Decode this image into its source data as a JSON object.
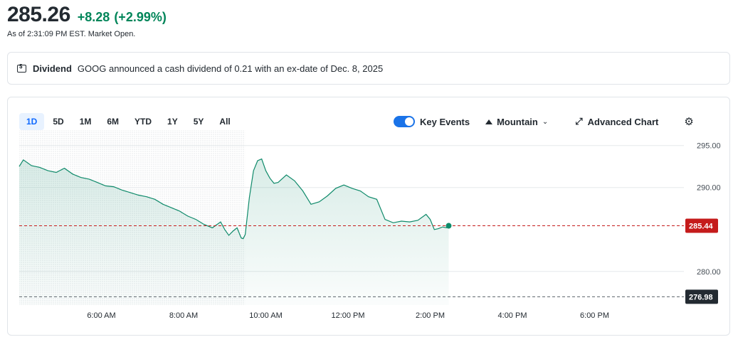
{
  "quote": {
    "price": "285.26",
    "change": "+8.28",
    "change_pct": "(+2.99%)",
    "as_of": "As of 2:31:09 PM EST. Market Open."
  },
  "dividend": {
    "label": "Dividend",
    "text": "GOOG announced a cash dividend of 0.21 with an ex-date of Dec. 8, 2025",
    "icon": "dollar-bill-icon"
  },
  "range_tabs": [
    "1D",
    "5D",
    "1M",
    "6M",
    "YTD",
    "1Y",
    "5Y",
    "All"
  ],
  "active_range": "1D",
  "toolbar": {
    "key_events_label": "Key Events",
    "key_events_on": true,
    "chart_type_label": "Mountain",
    "advanced_label": "Advanced Chart",
    "settings_icon": "gear-icon"
  },
  "colors": {
    "accent": "#0f69ff",
    "up": "#008559",
    "line": "#0f8a6a",
    "last_tag": "#c51b1b",
    "prev_close_tag": "#232a31"
  },
  "chart_data": {
    "type": "area",
    "ylim": [
      276.0,
      296.5
    ],
    "yticks": [
      "295.00",
      "290.00",
      "280.00"
    ],
    "ytick_values": [
      295,
      290,
      280
    ],
    "xticks": [
      "6:00 AM",
      "8:00 AM",
      "10:00 AM",
      "12:00 PM",
      "2:00 PM",
      "4:00 PM",
      "6:00 PM"
    ],
    "xtick_hours": [
      6,
      8,
      10,
      12,
      14,
      16,
      18
    ],
    "x_range_hours": [
      4.0,
      20.0
    ],
    "premarket_end_hour": 9.5,
    "last_price": 285.44,
    "last_price_label": "285.44",
    "prev_close": 276.98,
    "prev_close_label": "276.98",
    "series": [
      {
        "x": [
          4.0,
          4.1,
          4.3,
          4.5,
          4.7,
          4.9,
          5.1,
          5.3,
          5.5,
          5.7,
          5.9,
          6.1,
          6.3,
          6.5,
          6.7,
          6.9,
          7.1,
          7.3,
          7.5,
          7.7,
          7.9,
          8.1,
          8.3,
          8.5,
          8.7,
          8.9,
          9.0,
          9.1,
          9.2,
          9.3,
          9.4,
          9.45,
          9.5,
          9.6,
          9.7,
          9.8,
          9.9,
          10.0,
          10.1,
          10.2,
          10.3,
          10.5,
          10.7,
          10.9,
          11.1,
          11.3,
          11.5,
          11.7,
          11.9,
          12.1,
          12.3,
          12.5,
          12.7,
          12.9,
          13.1,
          13.3,
          13.5,
          13.7,
          13.9,
          14.0,
          14.1,
          14.2,
          14.3,
          14.4,
          14.45
        ],
        "y": [
          292.5,
          293.3,
          292.6,
          292.4,
          292.0,
          291.8,
          292.3,
          291.6,
          291.2,
          291.0,
          290.6,
          290.2,
          290.1,
          289.7,
          289.4,
          289.1,
          288.9,
          288.6,
          288.0,
          287.6,
          287.2,
          286.6,
          286.2,
          285.6,
          285.2,
          285.9,
          285.0,
          284.3,
          284.8,
          285.2,
          284.0,
          283.9,
          284.4,
          288.8,
          292.0,
          293.2,
          293.4,
          292.0,
          291.1,
          290.5,
          290.6,
          291.5,
          290.8,
          289.6,
          288.0,
          288.3,
          289.0,
          289.9,
          290.3,
          289.9,
          289.6,
          288.9,
          288.6,
          286.2,
          285.8,
          286.0,
          285.9,
          286.1,
          286.8,
          286.2,
          285.0,
          285.1,
          285.3,
          285.2,
          285.44
        ]
      }
    ]
  }
}
